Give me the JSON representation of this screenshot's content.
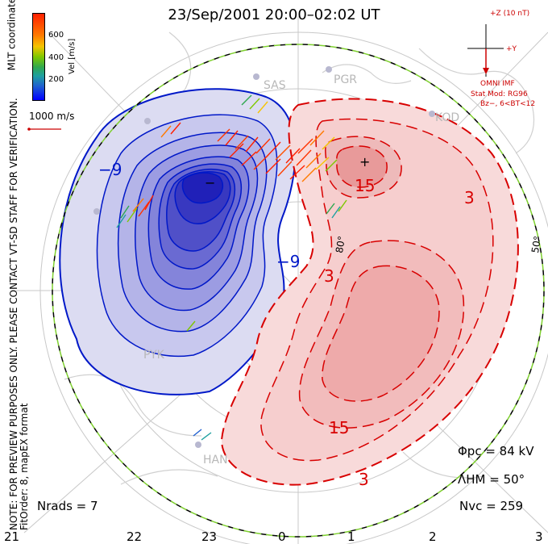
{
  "title": "23/Sep/2001 20:00–02:02 UT",
  "side_note_line1": "NOTE: FOR PREVIEW PURPOSES ONLY. PLEASE CONTACT VT-SD STAFF FOR VERIFICATION.",
  "side_note_line2": "FitOrder: 8, mapEX format",
  "coords_label": "MLT coordinates",
  "colorbar": {
    "title": "Vel [m/s]",
    "ticks": [
      "600",
      "400",
      "200"
    ],
    "colors": [
      "#ff2000",
      "#ff7a00",
      "#f5c400",
      "#7ec800",
      "#2fa84f",
      "#1ea0a0",
      "#2060d0",
      "#0000ff"
    ]
  },
  "scale_vector": "1000 m/s",
  "imf": {
    "z_label": "+Z (10 nT)",
    "y_label": "+Y",
    "source": "OMNI IMF",
    "model": "Stat Mod: RG96",
    "bin": "Bz−, 6<BT<12"
  },
  "stats": {
    "phi_pc": "Φpc = 84 kV",
    "lambda_hm": "ΛHM = 50°",
    "n_vc": "Nvc = 259",
    "n_rads": "Nrads = 7"
  },
  "mlt_hours": [
    "21",
    "22",
    "23",
    "0",
    "1",
    "2",
    "3"
  ],
  "lat_labels": [
    "80°",
    "50°"
  ],
  "stations": [
    "SAS",
    "PGR",
    "KOD",
    "HAN",
    "PYK"
  ],
  "contour_labels": [
    "−9",
    "−9",
    "15",
    "3",
    "3",
    "15",
    "3"
  ],
  "colors": {
    "negative": "#0018c8",
    "positive": "#d80000",
    "negative_fill": "#dcdcf2",
    "positive_fill": "#f8dada",
    "boundary": "#7fd030"
  }
}
